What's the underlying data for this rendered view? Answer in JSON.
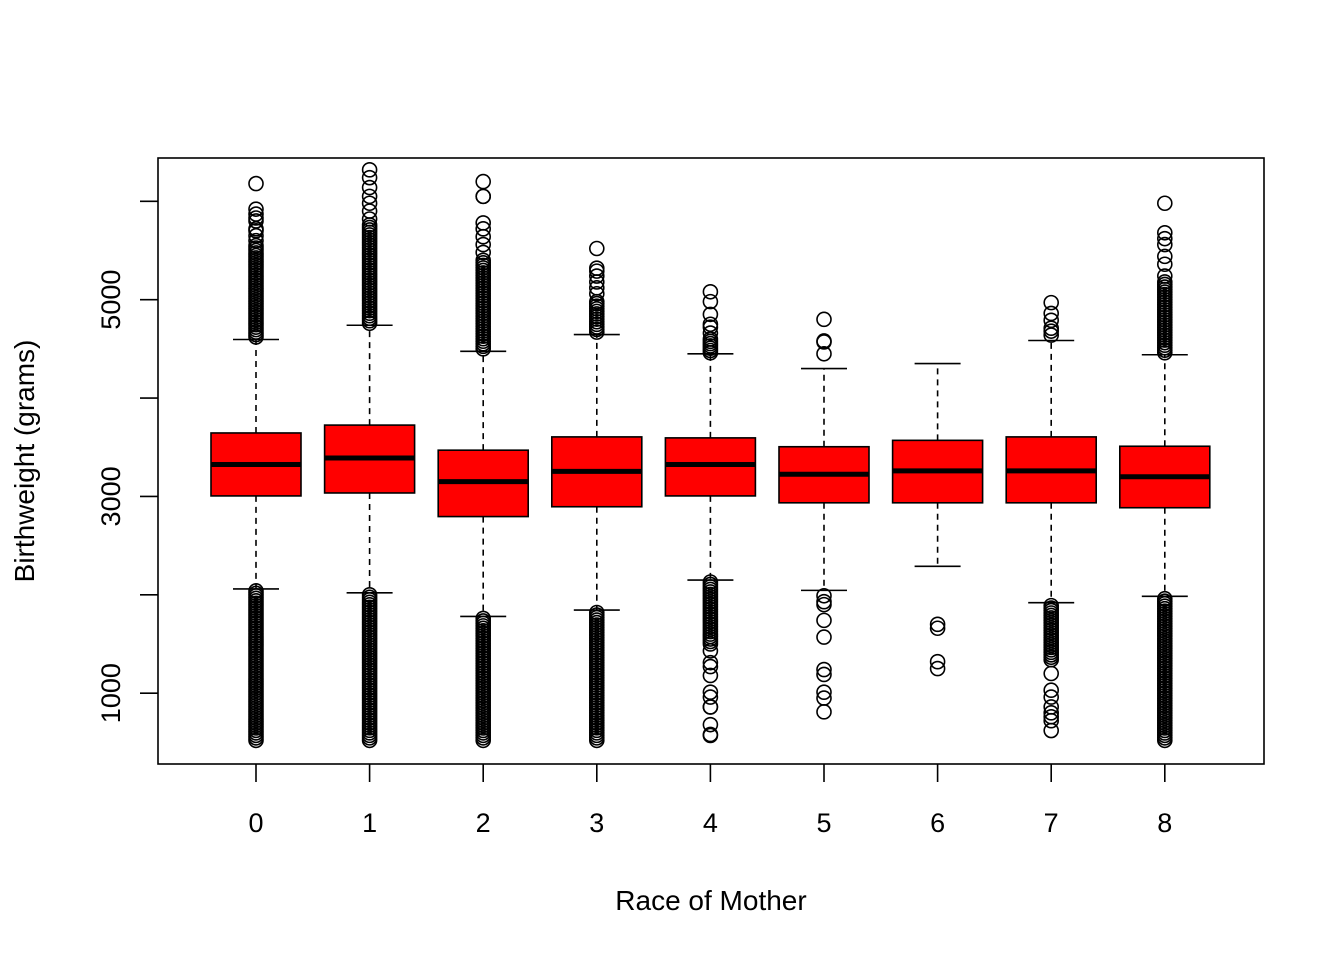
{
  "chart_data": {
    "type": "boxplot",
    "title": "",
    "xlabel": "Race of Mother",
    "ylabel": "Birthweight (grams)",
    "categories": [
      "0",
      "1",
      "2",
      "3",
      "4",
      "5",
      "6",
      "7",
      "8"
    ],
    "ylim": [
      280,
      6440
    ],
    "yticks": [
      1000,
      3000,
      5000
    ],
    "yticks_minor": [
      1000,
      2000,
      3000,
      4000,
      5000,
      6000
    ],
    "box_color": "#ff0000",
    "grid": false,
    "legend": "none",
    "boxes": [
      {
        "category": "0",
        "whisker_low": 2060,
        "q1": 3005,
        "median": 3325,
        "q3": 3645,
        "whisker_high": 4595,
        "outliers_low_dense": [
          520,
          2040
        ],
        "outliers_high_dense": [
          4620,
          5550
        ],
        "outliers_sparse": [
          5600,
          5650,
          5700,
          5720,
          5800,
          5830,
          5870,
          5920,
          6180
        ]
      },
      {
        "category": "1",
        "whisker_low": 2020,
        "q1": 3035,
        "median": 3390,
        "q3": 3725,
        "whisker_high": 4740,
        "outliers_low_dense": [
          520,
          2000
        ],
        "outliers_high_dense": [
          4760,
          5760
        ],
        "outliers_sparse": [
          5820,
          5900,
          5980,
          6050,
          6140,
          6240,
          6320
        ]
      },
      {
        "category": "2",
        "whisker_low": 1780,
        "q1": 2795,
        "median": 3150,
        "q3": 3470,
        "whisker_high": 4475,
        "outliers_low_dense": [
          520,
          1760
        ],
        "outliers_high_dense": [
          4500,
          5400
        ],
        "outliers_sparse": [
          5480,
          5560,
          5640,
          5720,
          5780,
          6050,
          6050,
          6200
        ]
      },
      {
        "category": "3",
        "whisker_low": 1845,
        "q1": 2895,
        "median": 3255,
        "q3": 3605,
        "whisker_high": 4645,
        "outliers_low_dense": [
          520,
          1820
        ],
        "outliers_high_dense": [
          4670,
          4960
        ],
        "outliers_sparse": [
          4980,
          5060,
          5120,
          5180,
          5240,
          5290,
          5320,
          5520
        ]
      },
      {
        "category": "4",
        "whisker_low": 2150,
        "q1": 3005,
        "median": 3325,
        "q3": 3595,
        "whisker_high": 4450,
        "outliers_low_dense": [
          1500,
          2130
        ],
        "outliers_high_dense": [
          4460,
          4600
        ],
        "outliers_sparse": [
          4660,
          4720,
          4750,
          4850,
          4980,
          5080,
          1430,
          1310,
          1270,
          1180,
          1010,
          960,
          860,
          860,
          680,
          580,
          570
        ]
      },
      {
        "category": "5",
        "whisker_low": 2045,
        "q1": 2935,
        "median": 3225,
        "q3": 3505,
        "whisker_high": 4300,
        "outliers_low_dense": [],
        "outliers_high_dense": [],
        "outliers_sparse": [
          1990,
          1930,
          1900,
          1740,
          1570,
          1240,
          1190,
          1010,
          950,
          810,
          4450,
          4570,
          4580,
          4800
        ]
      },
      {
        "category": "6",
        "whisker_low": 2290,
        "q1": 2935,
        "median": 3260,
        "q3": 3570,
        "whisker_high": 4350,
        "outliers_low_dense": [],
        "outliers_high_dense": [],
        "outliers_sparse": [
          1700,
          1660,
          1320,
          1250
        ]
      },
      {
        "category": "7",
        "whisker_low": 1920,
        "q1": 2935,
        "median": 3260,
        "q3": 3605,
        "whisker_high": 4585,
        "outliers_low_dense": [
          1340,
          1890
        ],
        "outliers_high_dense": [],
        "outliers_sparse": [
          1200,
          1030,
          960,
          860,
          800,
          760,
          720,
          620,
          4640,
          4680,
          4710,
          4790,
          4860,
          4970
        ]
      },
      {
        "category": "8",
        "whisker_low": 1985,
        "q1": 2885,
        "median": 3200,
        "q3": 3510,
        "whisker_high": 4440,
        "outliers_low_dense": [
          520,
          1960
        ],
        "outliers_high_dense": [
          4460,
          5180
        ],
        "outliers_sparse": [
          5240,
          5360,
          5440,
          5560,
          5620,
          5680,
          5980
        ]
      }
    ]
  }
}
